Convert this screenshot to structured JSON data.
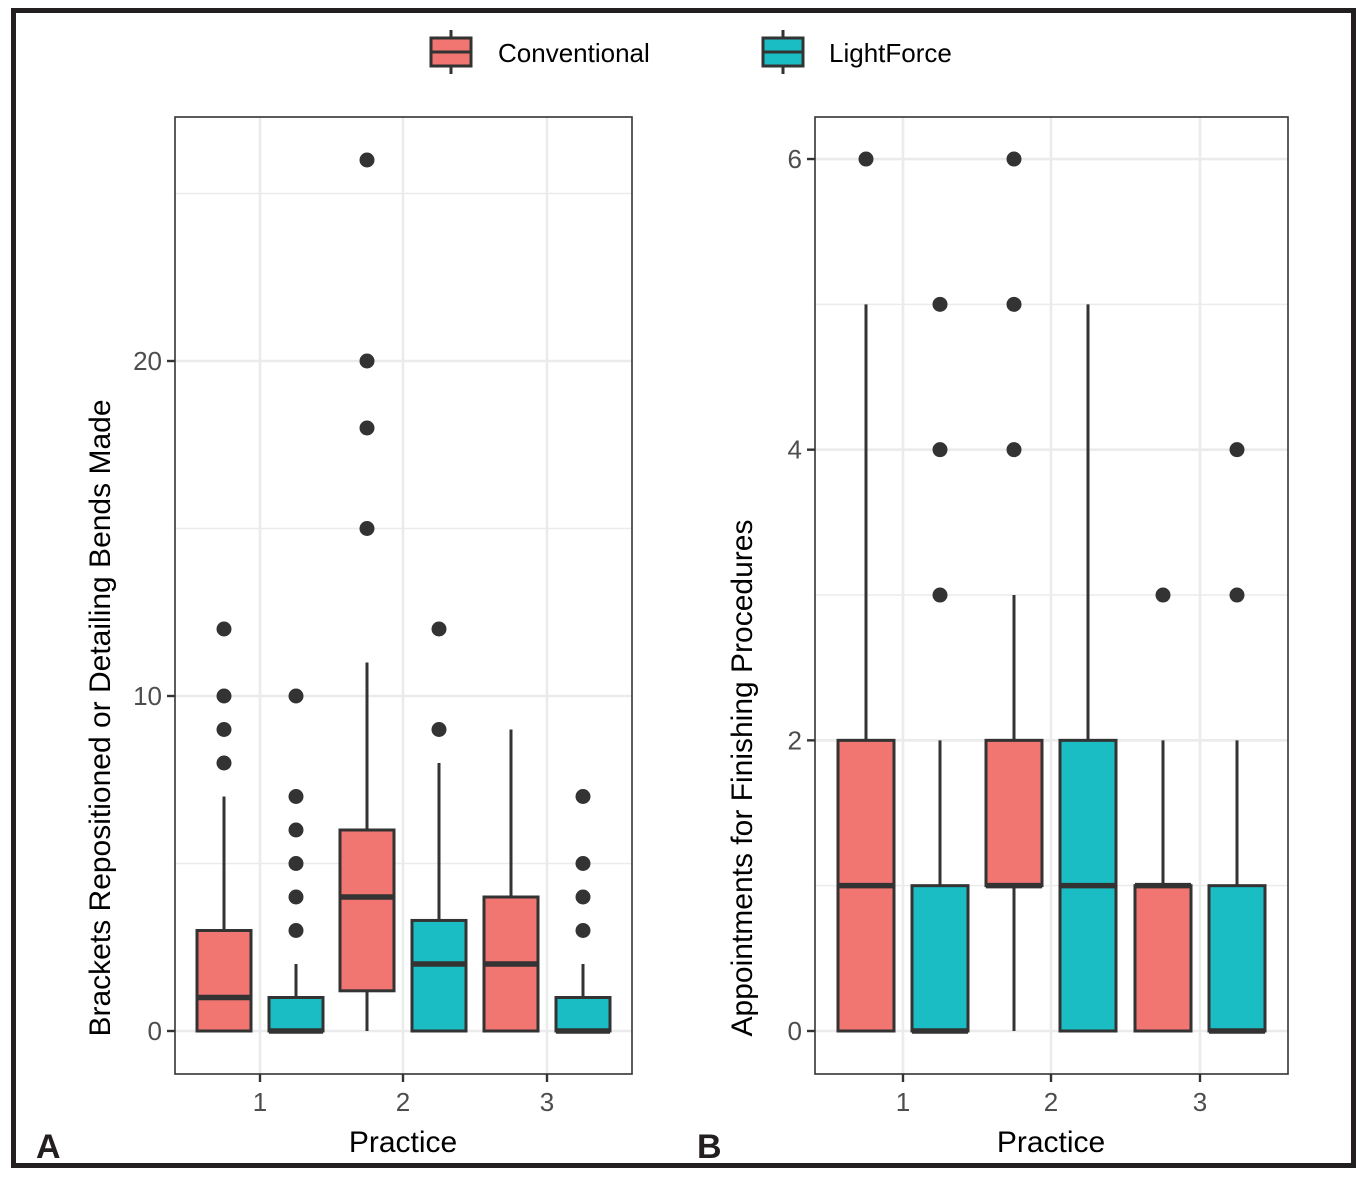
{
  "legend": {
    "items": [
      {
        "label": "Conventional",
        "color": "#F17570"
      },
      {
        "label": "LightForce",
        "color": "#1BBDC4"
      }
    ]
  },
  "panel_labels": [
    "A",
    "B"
  ],
  "colors": {
    "conventional": "#F17570",
    "lightforce": "#1BBDC4",
    "outline": "#333333",
    "grid": "#EBEBEB",
    "axis_text": "#4D4D4D"
  },
  "chart_data": [
    {
      "type": "box",
      "panel": "A",
      "title": "",
      "xlabel": "Practice",
      "ylabel": "Brackets Repositioned or Detailing Bends Made",
      "categories": [
        "1",
        "2",
        "3"
      ],
      "ylim": [
        -1.3,
        27.3
      ],
      "yticks": [
        0,
        10,
        20
      ],
      "ygrid_minor": [
        5,
        15,
        25
      ],
      "grid": true,
      "legend": "top",
      "series": [
        {
          "name": "Conventional",
          "boxes": [
            {
              "category": "1",
              "lower_whisker": 0,
              "q1": 0,
              "median": 1,
              "q3": 3,
              "upper_whisker": 7,
              "outliers": [
                8,
                9,
                10,
                12
              ]
            },
            {
              "category": "2",
              "lower_whisker": 0,
              "q1": 1.2,
              "median": 4,
              "q3": 6,
              "upper_whisker": 11,
              "outliers": [
                15,
                18,
                20,
                26
              ]
            },
            {
              "category": "3",
              "lower_whisker": 0,
              "q1": 0,
              "median": 2,
              "q3": 4,
              "upper_whisker": 9,
              "outliers": []
            }
          ]
        },
        {
          "name": "LightForce",
          "boxes": [
            {
              "category": "1",
              "lower_whisker": 0,
              "q1": 0,
              "median": 0,
              "q3": 1,
              "upper_whisker": 2,
              "outliers": [
                3,
                4,
                5,
                6,
                7,
                10
              ]
            },
            {
              "category": "2",
              "lower_whisker": 0,
              "q1": 0,
              "median": 2,
              "q3": 3.3,
              "upper_whisker": 8,
              "outliers": [
                9,
                12
              ]
            },
            {
              "category": "3",
              "lower_whisker": 0,
              "q1": 0,
              "median": 0,
              "q3": 1,
              "upper_whisker": 2,
              "outliers": [
                3,
                4,
                5,
                7
              ]
            }
          ]
        }
      ]
    },
    {
      "type": "box",
      "panel": "B",
      "title": "",
      "xlabel": "Practice",
      "ylabel": "Appointments for Finishing Procedures",
      "categories": [
        "1",
        "2",
        "3"
      ],
      "ylim": [
        -0.3,
        6.3
      ],
      "yticks": [
        0,
        2,
        4,
        6
      ],
      "ygrid_minor": [
        1,
        3,
        5
      ],
      "grid": true,
      "legend": "top",
      "series": [
        {
          "name": "Conventional",
          "boxes": [
            {
              "category": "1",
              "lower_whisker": 0,
              "q1": 0,
              "median": 1,
              "q3": 2,
              "upper_whisker": 5,
              "outliers": [
                6
              ]
            },
            {
              "category": "2",
              "lower_whisker": 0,
              "q1": 1,
              "median": 1,
              "q3": 2,
              "upper_whisker": 3,
              "outliers": [
                4,
                5,
                6
              ]
            },
            {
              "category": "3",
              "lower_whisker": 0,
              "q1": 0,
              "median": 1,
              "q3": 1,
              "upper_whisker": 2,
              "outliers": [
                3
              ]
            }
          ]
        },
        {
          "name": "LightForce",
          "boxes": [
            {
              "category": "1",
              "lower_whisker": 0,
              "q1": 0,
              "median": 0,
              "q3": 1,
              "upper_whisker": 2,
              "outliers": [
                3,
                4,
                5
              ]
            },
            {
              "category": "2",
              "lower_whisker": 0,
              "q1": 0,
              "median": 1,
              "q3": 2,
              "upper_whisker": 5,
              "outliers": []
            },
            {
              "category": "3",
              "lower_whisker": 0,
              "q1": 0,
              "median": 0,
              "q3": 1,
              "upper_whisker": 2,
              "outliers": [
                3,
                4
              ]
            }
          ]
        }
      ]
    }
  ]
}
